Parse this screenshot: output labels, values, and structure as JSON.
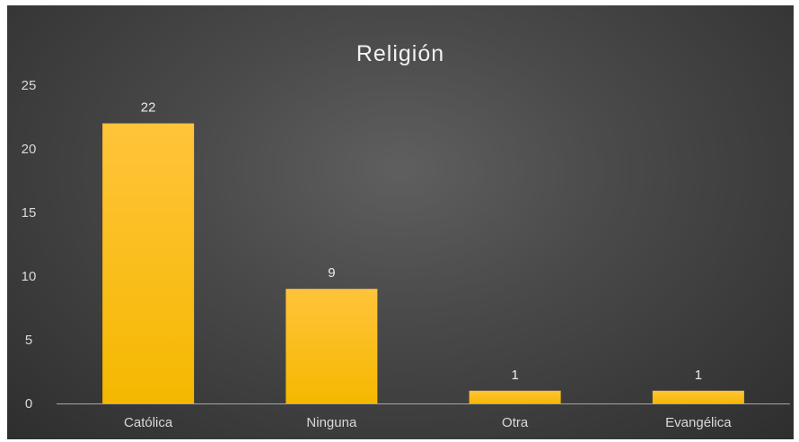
{
  "chart_data": {
    "type": "bar",
    "title": "Religión",
    "categories": [
      "Católica",
      "Ninguna",
      "Otra",
      "Evangélica"
    ],
    "values": [
      22,
      9,
      1,
      1
    ],
    "data_labels": [
      "22",
      "9",
      "1",
      "1"
    ],
    "ylim": [
      0,
      25
    ],
    "yticks": [
      0,
      5,
      10,
      15,
      20,
      25
    ],
    "ytick_labels": [
      "0",
      "5",
      "10",
      "15",
      "20",
      "25"
    ],
    "xlabel": "",
    "ylabel": "",
    "grid": false,
    "legend": "none",
    "colors": {
      "bar_top": "#ffc43a",
      "bar_bottom": "#f5b800",
      "background_center": "#5f5f5f",
      "background_edge": "#2e2e2e",
      "text": "#d9d9d9",
      "baseline": "#a6a6a6"
    }
  }
}
